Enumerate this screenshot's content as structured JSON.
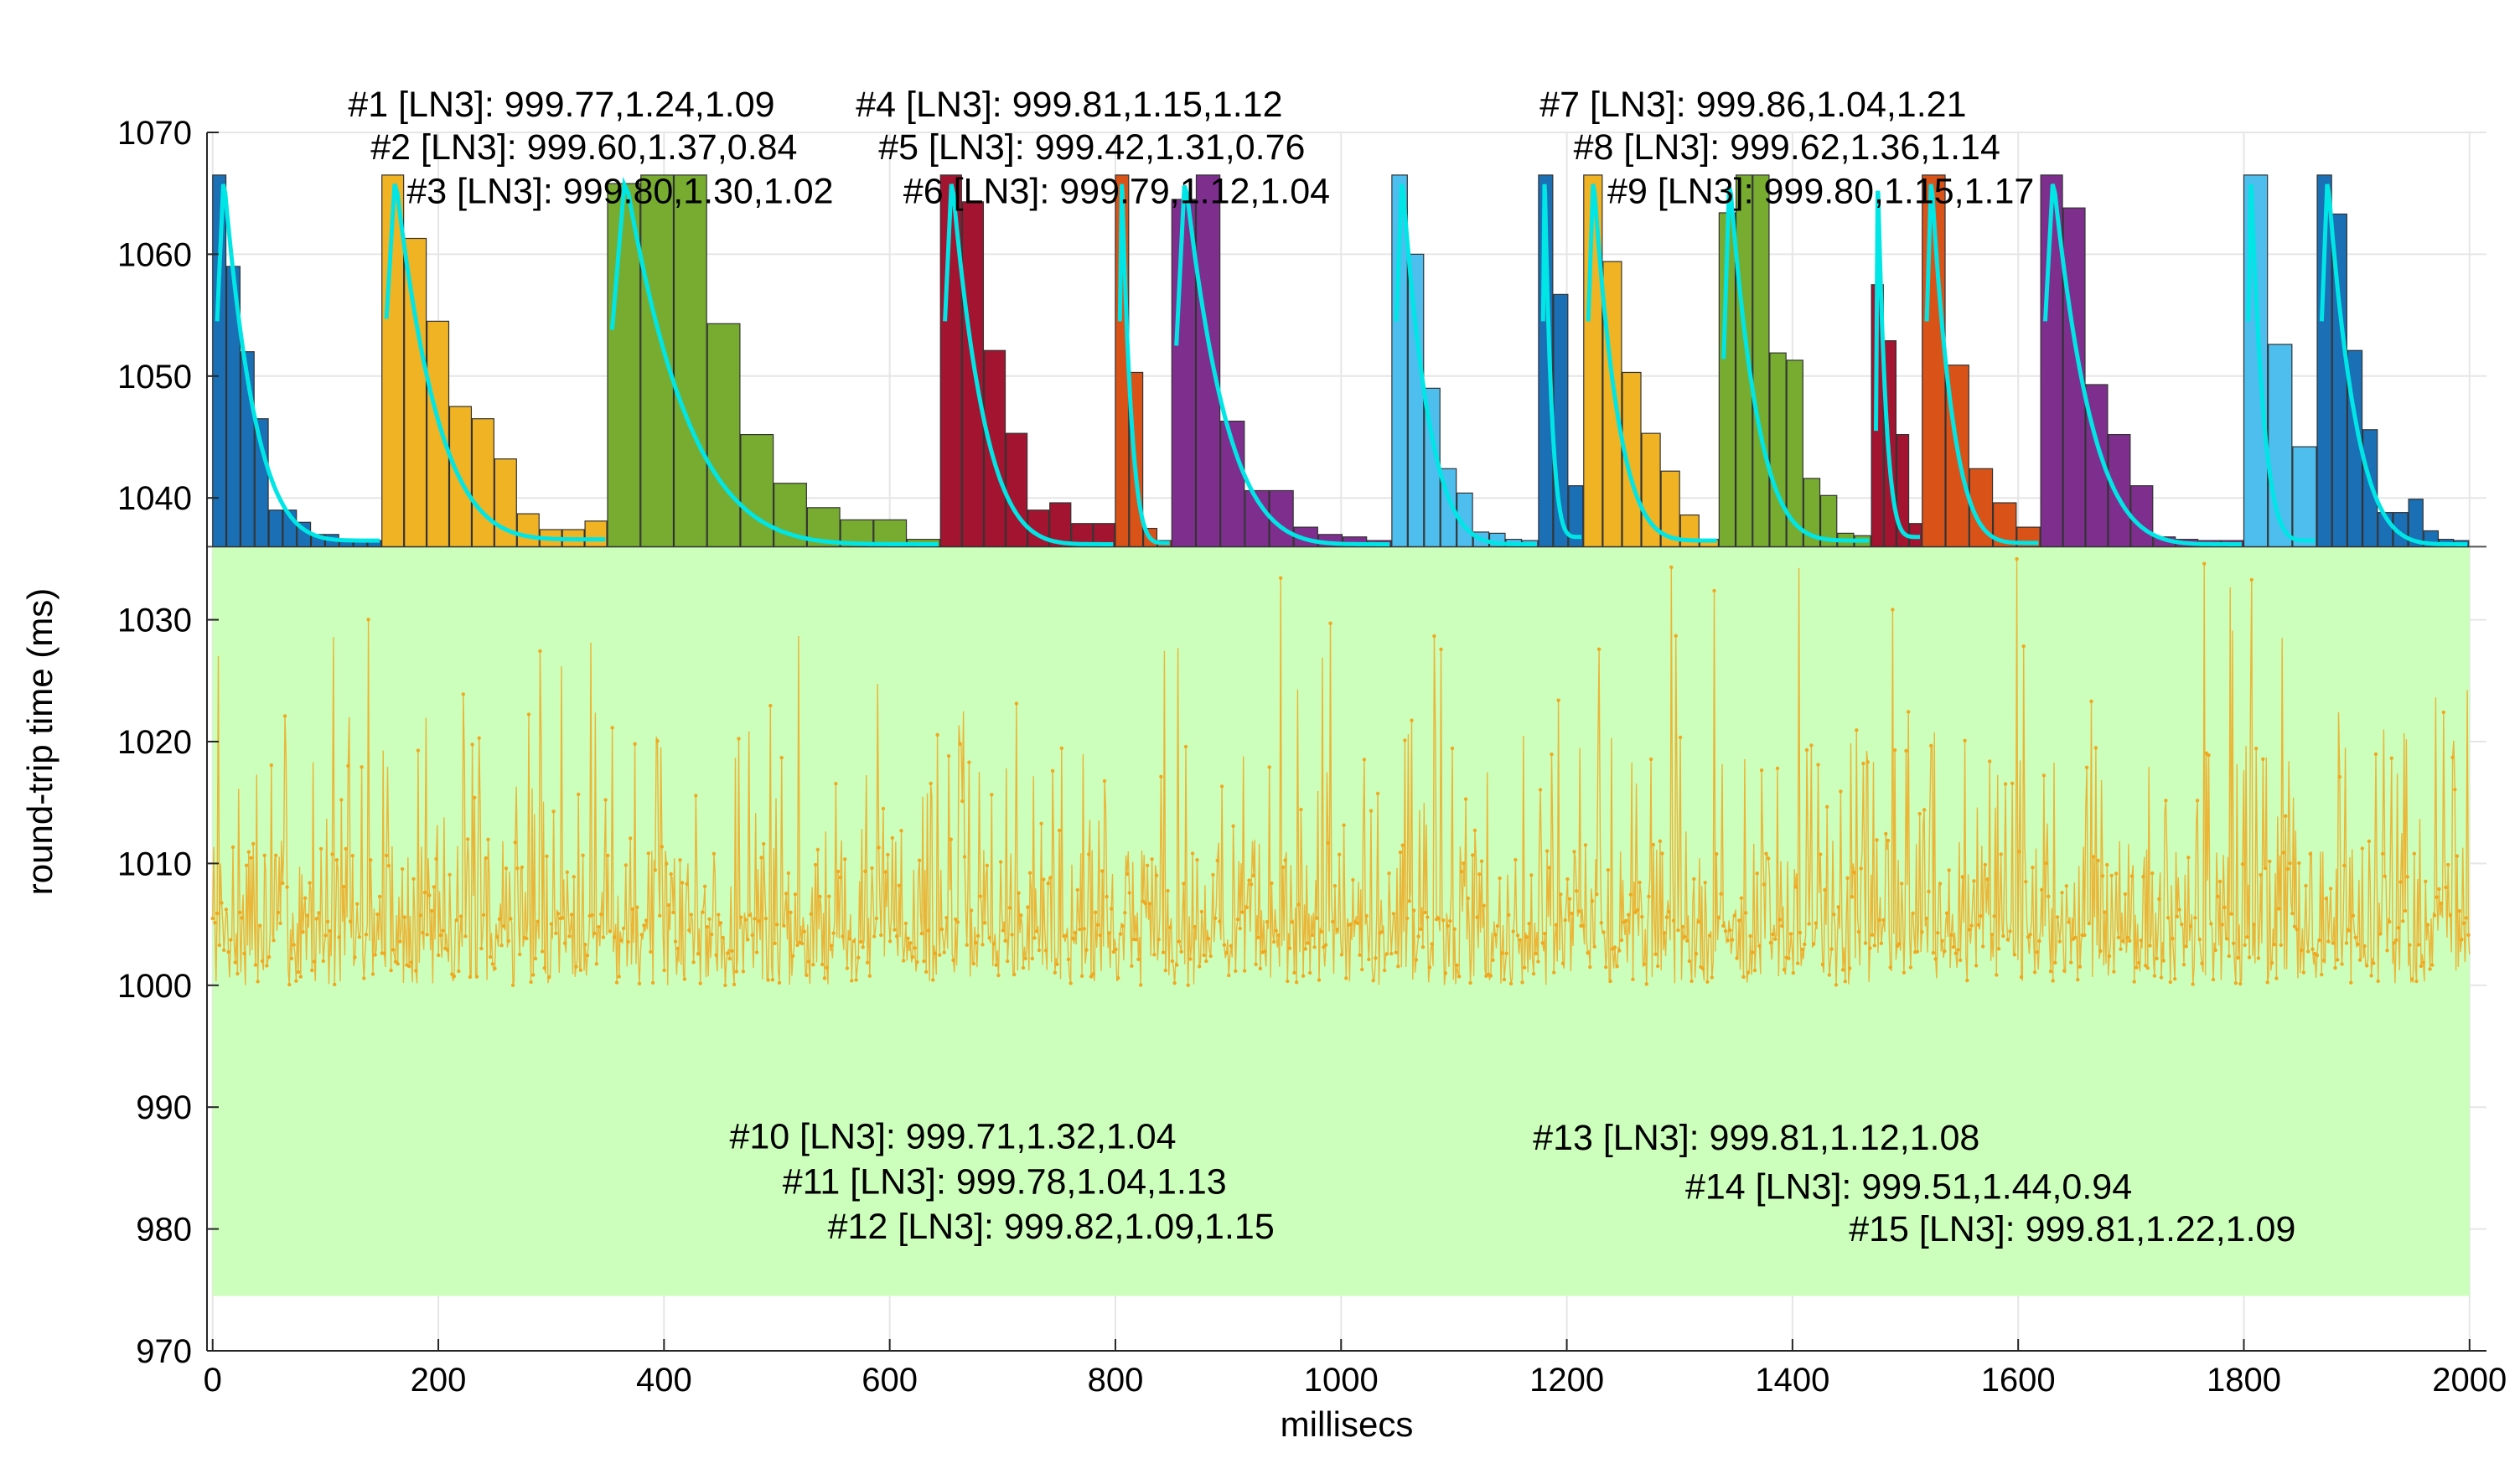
{
  "chart_data": {
    "type": "bar+line",
    "xlabel": "millisecs",
    "ylabel": "round-trip time (ms)",
    "xlim": [
      -5,
      2015
    ],
    "ylim": [
      970,
      1070
    ],
    "xticks": [
      0,
      200,
      400,
      600,
      800,
      1000,
      1200,
      1400,
      1600,
      1800,
      2000
    ],
    "yticks": [
      970,
      980,
      990,
      1000,
      1010,
      1020,
      1030,
      1040,
      1050,
      1060,
      1070
    ],
    "grid": true,
    "histogram_baseline": 1036,
    "green_band": {
      "y_min": 974.5,
      "y_max": 1036,
      "x_min": 0,
      "x_max": 2000,
      "color": "#ccffbb"
    },
    "fit_curve_color": "#00e5e5",
    "trace": {
      "color": "#f0a820",
      "count": 2000,
      "y_min": 1000,
      "y_max": 1035,
      "seed": 7,
      "note": "noisy round-trip samples, mostly 1000-1012 ms with frequent spikes up to ~1035 ms"
    },
    "histograms": [
      {
        "id": 1,
        "x0": 0,
        "x1": 150,
        "color": "#1a6fb5",
        "values": [
          1066.5,
          1059,
          1052,
          1046.5,
          1039,
          1039,
          1038,
          1037,
          1037,
          1036.5,
          1036.5,
          1036.5
        ],
        "peak": 1066.5,
        "fit_end": 1036.5
      },
      {
        "id": 2,
        "x0": 150,
        "x1": 350,
        "color": "#f0b323",
        "values": [
          1066.7,
          1061.3,
          1054.5,
          1047.5,
          1046.5,
          1043.2,
          1038.7,
          1037.4,
          1037.4,
          1038.1
        ],
        "peak": 1066.5,
        "fit_end": 1036.6
      },
      {
        "id": 3,
        "x0": 350,
        "x1": 645,
        "color": "#77ac30",
        "values": [
          1065.8,
          1066.5,
          1066.5,
          1054.3,
          1045.2,
          1041.2,
          1039.2,
          1038.2,
          1038.2,
          1036.6
        ],
        "peak": 1066.5,
        "fit_end": 1036.2
      },
      {
        "id": 4,
        "x0": 645,
        "x1": 800,
        "color": "#a2142f",
        "values": [
          1066.5,
          1064.3,
          1052.1,
          1045.3,
          1039,
          1039.6,
          1037.9,
          1037.9
        ],
        "peak": 1066.5,
        "fit_end": 1036.2
      },
      {
        "id": 5,
        "x0": 800,
        "x1": 850,
        "color": "#d95319",
        "values": [
          1066.5,
          1050.3,
          1037.5,
          1036.5
        ],
        "peak": 1066.5,
        "fit_end": 1036.3
      },
      {
        "id": 6,
        "x0": 850,
        "x1": 1045,
        "color": "#7e2f8e",
        "values": [
          1064.5,
          1066.5,
          1046.3,
          1040.6,
          1040.6,
          1037.6,
          1037,
          1036.8,
          1036.5
        ],
        "peak": 1066.5,
        "fit_end": 1036.2
      },
      {
        "id": 7,
        "x0": 1045,
        "x1": 1175,
        "color": "#4dbeee",
        "values": [
          1066.5,
          1060,
          1049,
          1042.4,
          1040.4,
          1037.2,
          1037.1,
          1036.6,
          1036.5
        ],
        "peak": 1066.5,
        "fit_end": 1036.2
      },
      {
        "id": 8,
        "x0": 1175,
        "x1": 1215,
        "color": "#1a6fb5",
        "values": [
          1066.5,
          1056.7,
          1041
        ],
        "peak": 1066.5,
        "fit_end": 1036.8
      },
      {
        "id": 9,
        "x0": 1215,
        "x1": 1335,
        "color": "#f0b323",
        "values": [
          1066.5,
          1059.4,
          1050.3,
          1045.3,
          1042.2,
          1038.6,
          1036.6
        ],
        "peak": 1066.5,
        "fit_end": 1036.5
      },
      {
        "id": 10,
        "x0": 1335,
        "x1": 1470,
        "color": "#77ac30",
        "values": [
          1063.4,
          1066.5,
          1066.5,
          1051.9,
          1051.3,
          1041.6,
          1040.2,
          1037.1,
          1036.9
        ],
        "peak": 1066.5,
        "fit_end": 1036.5
      },
      {
        "id": 11,
        "x0": 1470,
        "x1": 1515,
        "color": "#a2142f",
        "values": [
          1057.5,
          1052.9,
          1045.2,
          1037.9
        ],
        "peak": 1066.5,
        "fit_end": 1036.8
      },
      {
        "id": 12,
        "x0": 1515,
        "x1": 1620,
        "color": "#d95319",
        "values": [
          1066.5,
          1050.9,
          1042.4,
          1039.6,
          1037.6
        ],
        "peak": 1066.5,
        "fit_end": 1036.3
      },
      {
        "id": 13,
        "x0": 1620,
        "x1": 1800,
        "color": "#7e2f8e",
        "values": [
          1066.5,
          1063.8,
          1049.3,
          1045.2,
          1041,
          1036.8,
          1036.6,
          1036.5,
          1036.5
        ],
        "peak": 1066.5,
        "fit_end": 1036.2
      },
      {
        "id": 14,
        "x0": 1800,
        "x1": 1865,
        "color": "#4dbeee",
        "values": [
          1066.5,
          1052.6,
          1044.2
        ],
        "peak": 1066.5,
        "fit_end": 1036.5
      },
      {
        "id": 15,
        "x0": 1865,
        "x1": 2000,
        "color": "#1a6fb5",
        "values": [
          1066.5,
          1063.3,
          1052.1,
          1045.6,
          1038.8,
          1038.8,
          1039.9,
          1037.3,
          1036.6,
          1036.5
        ],
        "peak": 1066.5,
        "fit_end": 1036.2
      }
    ],
    "annotations": [
      {
        "text": "#1 [LN3]: 999.77,1.24,1.09",
        "x": 120,
        "y": 1071.3
      },
      {
        "text": "#2 [LN3]: 999.60,1.37,0.84",
        "x": 140,
        "y": 1067.8
      },
      {
        "text": "#3 [LN3]: 999.80,1.30,1.02",
        "x": 172,
        "y": 1064.2
      },
      {
        "text": "#4 [LN3]: 999.81,1.15,1.12",
        "x": 570,
        "y": 1071.3
      },
      {
        "text": "#5 [LN3]: 999.42,1.31,0.76",
        "x": 590,
        "y": 1067.8
      },
      {
        "text": "#6 [LN3]: 999.79,1.12,1.04",
        "x": 612,
        "y": 1064.2
      },
      {
        "text": "#7 [LN3]: 999.86,1.04,1.21",
        "x": 1176,
        "y": 1071.3
      },
      {
        "text": "#8 [LN3]: 999.62,1.36,1.14",
        "x": 1206,
        "y": 1067.8
      },
      {
        "text": "#9 [LN3]: 999.80,1.15,1.17",
        "x": 1236,
        "y": 1064.2
      },
      {
        "text": "#10 [LN3]: 999.71,1.32,1.04",
        "x": 458,
        "y": 986.6
      },
      {
        "text": "#11 [LN3]: 999.78,1.04,1.13",
        "x": 505,
        "y": 982.9
      },
      {
        "text": "#12 [LN3]: 999.82,1.09,1.15",
        "x": 545,
        "y": 979.2
      },
      {
        "text": "#13 [LN3]: 999.81,1.12,1.08",
        "x": 1170,
        "y": 986.5
      },
      {
        "text": "#14 [LN3]: 999.51,1.44,0.94",
        "x": 1305,
        "y": 982.5
      },
      {
        "text": "#15 [LN3]: 999.81,1.22,1.09",
        "x": 1450,
        "y": 979.0
      }
    ]
  }
}
